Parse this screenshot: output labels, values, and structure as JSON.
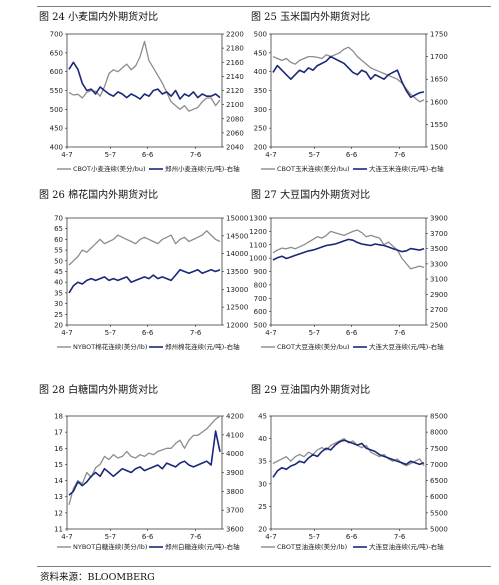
{
  "source": "资料来源：BLOOMBERG",
  "colors": {
    "series_gray": "#8c8c8c",
    "series_navy": "#1a2878",
    "rule": "#555555"
  },
  "chart_data": [
    {
      "type": "line",
      "title": "图 24 小麦国内外期货对比",
      "x_ticks": [
        "4-7",
        "5-7",
        "6-6",
        "7-6"
      ],
      "left_axis": {
        "ylim": [
          400,
          700
        ],
        "ticks": [
          400,
          450,
          500,
          550,
          600,
          650,
          700
        ]
      },
      "right_axis": {
        "ylim": [
          2040,
          2200
        ],
        "ticks": [
          2040,
          2060,
          2080,
          2100,
          2120,
          2140,
          2160,
          2180,
          2200
        ]
      },
      "series": [
        {
          "name": "CBOT小麦连续(美分/bu)",
          "axis": "left",
          "color": "#8c8c8c",
          "values": [
            545,
            538,
            540,
            530,
            545,
            550,
            548,
            535,
            560,
            595,
            605,
            600,
            610,
            620,
            605,
            615,
            640,
            680,
            630,
            610,
            590,
            570,
            545,
            520,
            510,
            500,
            510,
            495,
            500,
            505,
            520,
            530,
            530,
            510,
            525
          ]
        },
        {
          "name": "郑州小麦连续(元/吨)-右轴",
          "axis": "right",
          "color": "#1a2878",
          "values": [
            2150,
            2160,
            2150,
            2130,
            2120,
            2122,
            2115,
            2125,
            2120,
            2115,
            2112,
            2118,
            2115,
            2110,
            2115,
            2112,
            2108,
            2115,
            2112,
            2120,
            2122,
            2115,
            2118,
            2112,
            2120,
            2108,
            2115,
            2112,
            2118,
            2110,
            2115,
            2112,
            2112,
            2115,
            2110
          ]
        }
      ],
      "legend": [
        "CBOT小麦连续(美分/bu)",
        "郑州小麦连续(元/吨)-右轴"
      ]
    },
    {
      "type": "line",
      "title": "图 25 玉米国内外期货对比",
      "x_ticks": [
        "4-7",
        "5-7",
        "6-6",
        "7-6"
      ],
      "left_axis": {
        "ylim": [
          200,
          500
        ],
        "ticks": [
          200,
          250,
          300,
          350,
          400,
          450,
          500
        ]
      },
      "right_axis": {
        "ylim": [
          1500,
          1750
        ],
        "ticks": [
          1500,
          1550,
          1600,
          1650,
          1700,
          1750
        ]
      },
      "series": [
        {
          "name": "CBOT玉米连续(美分/bu)",
          "axis": "left",
          "color": "#8c8c8c",
          "values": [
            440,
            435,
            430,
            435,
            425,
            420,
            430,
            435,
            440,
            440,
            438,
            435,
            445,
            440,
            445,
            450,
            460,
            465,
            455,
            440,
            430,
            420,
            410,
            405,
            400,
            395,
            390,
            385,
            380,
            370,
            355,
            340,
            330,
            320,
            325
          ]
        },
        {
          "name": "大连玉米连续(元/吨)-右轴",
          "axis": "right",
          "color": "#1a2878",
          "values": [
            1665,
            1680,
            1670,
            1660,
            1650,
            1660,
            1670,
            1665,
            1675,
            1670,
            1680,
            1685,
            1690,
            1700,
            1695,
            1690,
            1685,
            1675,
            1665,
            1660,
            1670,
            1665,
            1650,
            1660,
            1655,
            1650,
            1660,
            1665,
            1670,
            1645,
            1625,
            1610,
            1615,
            1620,
            1622
          ]
        }
      ],
      "legend": [
        "CBOT玉米连续(美分/bu)",
        "大连玉米连续(元/吨)-右轴"
      ]
    },
    {
      "type": "line",
      "title": "图 26 棉花国内外期货对比",
      "x_ticks": [
        "4-7",
        "5-7",
        "6-6",
        "7-6"
      ],
      "left_axis": {
        "ylim": [
          20,
          70
        ],
        "ticks": [
          20,
          25,
          30,
          35,
          40,
          45,
          50,
          55,
          60,
          65,
          70
        ]
      },
      "right_axis": {
        "ylim": [
          12000,
          15000
        ],
        "ticks": [
          12000,
          12500,
          13000,
          13500,
          14000,
          14500,
          15000
        ]
      },
      "series": [
        {
          "name": "NYBOT棉花连续(美分/lb)",
          "axis": "left",
          "color": "#8c8c8c",
          "values": [
            48,
            50,
            52,
            55,
            54,
            56,
            58,
            60,
            58,
            59,
            60,
            62,
            61,
            60,
            59,
            58,
            60,
            61,
            60,
            59,
            58,
            60,
            61,
            62,
            58,
            60,
            61,
            59,
            60,
            61,
            62,
            64,
            62,
            60,
            59
          ]
        },
        {
          "name": "郑州棉花连续(元/吨)-右轴",
          "axis": "right",
          "color": "#1a2878",
          "values": [
            12900,
            13100,
            13200,
            13150,
            13250,
            13300,
            13250,
            13300,
            13350,
            13250,
            13300,
            13250,
            13300,
            13350,
            13200,
            13250,
            13300,
            13350,
            13300,
            13400,
            13300,
            13350,
            13300,
            13250,
            13400,
            13550,
            13500,
            13450,
            13500,
            13550,
            13450,
            13500,
            13550,
            13500,
            13550
          ]
        }
      ],
      "legend": [
        "NYBOT棉花连续(美分/lb)",
        "郑州棉花连续(元/吨)-右轴"
      ]
    },
    {
      "type": "line",
      "title": "图 27 大豆国内外期货对比",
      "x_ticks": [
        "4-7",
        "5-7",
        "6-6",
        "7-6"
      ],
      "left_axis": {
        "ylim": [
          500,
          1300
        ],
        "ticks": [
          500,
          600,
          700,
          800,
          900,
          1000,
          1100,
          1200,
          1300
        ]
      },
      "right_axis": {
        "ylim": [
          2500,
          3900
        ],
        "ticks": [
          2500,
          2700,
          2900,
          3100,
          3300,
          3500,
          3700,
          3900
        ]
      },
      "series": [
        {
          "name": "CBOT大豆连续(美分/bu)",
          "axis": "left",
          "color": "#8c8c8c",
          "values": [
            1040,
            1060,
            1075,
            1070,
            1080,
            1070,
            1085,
            1100,
            1120,
            1140,
            1160,
            1150,
            1170,
            1200,
            1190,
            1180,
            1170,
            1185,
            1200,
            1210,
            1190,
            1160,
            1170,
            1160,
            1150,
            1100,
            1120,
            1090,
            1060,
            1000,
            960,
            920,
            930,
            940,
            930
          ]
        },
        {
          "name": "大连大豆连续(元/吨)-右轴",
          "axis": "right",
          "color": "#1a2878",
          "values": [
            3350,
            3380,
            3400,
            3370,
            3390,
            3410,
            3430,
            3450,
            3470,
            3480,
            3500,
            3520,
            3540,
            3550,
            3560,
            3580,
            3600,
            3620,
            3610,
            3580,
            3560,
            3550,
            3540,
            3560,
            3550,
            3540,
            3520,
            3500,
            3480,
            3460,
            3470,
            3500,
            3490,
            3480,
            3500
          ]
        }
      ],
      "legend": [
        "CBOT大豆连续(美分/bu)",
        "大连大豆连续(元/吨)-右轴"
      ]
    },
    {
      "type": "line",
      "title": "图 28 白糖国内外期货对比",
      "x_ticks": [
        "4-7",
        "5-7",
        "6-6",
        "7-6"
      ],
      "left_axis": {
        "ylim": [
          11,
          18
        ],
        "ticks": [
          11,
          12,
          13,
          14,
          15,
          16,
          17,
          18
        ]
      },
      "right_axis": {
        "ylim": [
          3600,
          4200
        ],
        "ticks": [
          3600,
          3700,
          3800,
          3900,
          4000,
          4100,
          4200
        ]
      },
      "series": [
        {
          "name": "NYBOT白糖连续(美分/lb)",
          "axis": "left",
          "color": "#8c8c8c",
          "values": [
            12.5,
            13.5,
            14.0,
            13.8,
            14.5,
            14.2,
            14.8,
            15.0,
            15.5,
            15.3,
            15.6,
            15.4,
            15.5,
            15.8,
            15.5,
            15.4,
            15.6,
            15.5,
            15.7,
            15.6,
            15.8,
            15.9,
            16.0,
            16.0,
            16.3,
            16.5,
            16.0,
            16.5,
            16.8,
            16.8,
            17.0,
            17.2,
            17.5,
            17.8,
            18.0
          ]
        },
        {
          "name": "郑州白糖连续(元/吨)-右轴",
          "axis": "right",
          "color": "#1a2878",
          "values": [
            3780,
            3800,
            3850,
            3830,
            3850,
            3880,
            3900,
            3880,
            3920,
            3900,
            3880,
            3900,
            3920,
            3910,
            3900,
            3920,
            3930,
            3910,
            3920,
            3930,
            3940,
            3920,
            3950,
            3940,
            3930,
            3950,
            3960,
            3940,
            3930,
            3940,
            3950,
            3960,
            3940,
            4120,
            4010
          ]
        }
      ],
      "legend": [
        "NYBOT白糖连续(美分/lb)",
        "郑州白糖连续(元/吨)-右轴"
      ]
    },
    {
      "type": "line",
      "title": "图 29 豆油国内外期货对比",
      "x_ticks": [
        "4-7",
        "5-7",
        "6-6",
        "7-6"
      ],
      "left_axis": {
        "ylim": [
          20,
          45
        ],
        "ticks": [
          20,
          25,
          30,
          35,
          40,
          45
        ]
      },
      "right_axis": {
        "ylim": [
          5000,
          8500
        ],
        "ticks": [
          5000,
          5500,
          6000,
          6500,
          7000,
          7500,
          8000,
          8500
        ]
      },
      "series": [
        {
          "name": "CBOT豆油连续(美分/lb)",
          "axis": "left",
          "color": "#8c8c8c",
          "values": [
            34.5,
            35.0,
            35.5,
            36.0,
            35.0,
            36.0,
            36.5,
            36.0,
            37.0,
            36.5,
            37.5,
            38.0,
            37.5,
            38.5,
            39.0,
            39.5,
            40.0,
            39.0,
            39.5,
            38.5,
            38.0,
            38.5,
            37.0,
            36.5,
            36.0,
            36.5,
            35.5,
            35.0,
            35.5,
            34.5,
            34.0,
            34.5,
            35.0,
            35.5,
            34.0
          ]
        },
        {
          "name": "大连豆油连续(元/吨)-右轴",
          "axis": "right",
          "color": "#1a2878",
          "values": [
            6600,
            6800,
            6900,
            6850,
            6950,
            7000,
            7100,
            7050,
            7200,
            7300,
            7250,
            7400,
            7500,
            7450,
            7600,
            7700,
            7750,
            7700,
            7650,
            7600,
            7650,
            7500,
            7450,
            7400,
            7300,
            7250,
            7200,
            7150,
            7100,
            7050,
            7000,
            7100,
            7050,
            7000,
            7050
          ]
        }
      ],
      "legend": [
        "CBOT豆油连续(美分/lb)",
        "大连豆油连续(元/吨)-右轴"
      ]
    }
  ]
}
